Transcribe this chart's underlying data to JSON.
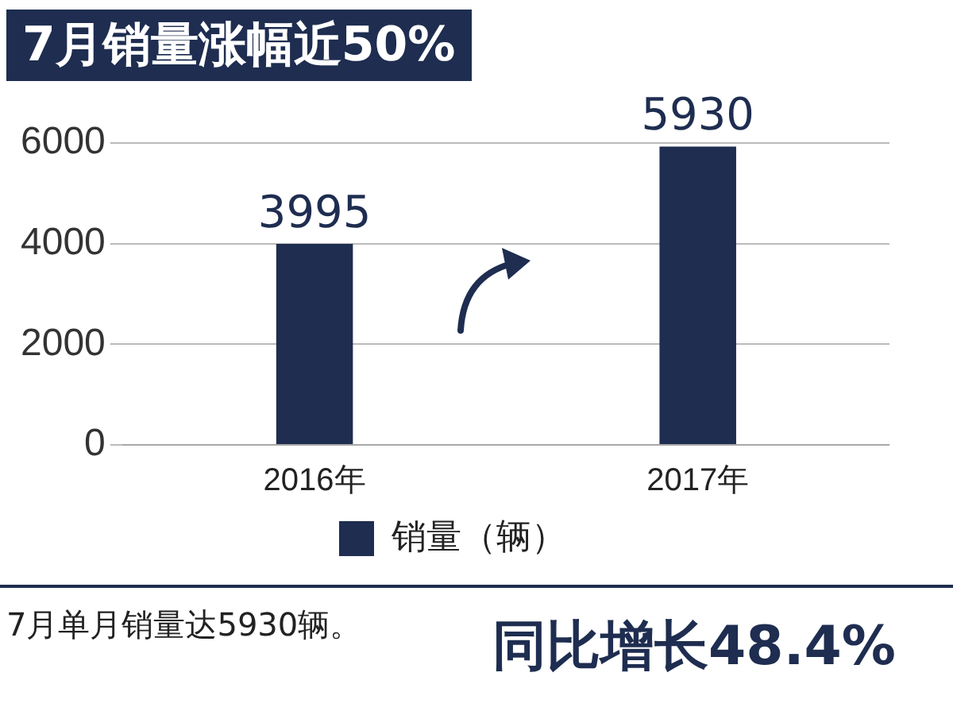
{
  "chart_data": {
    "type": "bar",
    "title": "7月销量涨幅近50%",
    "categories": [
      "2016年",
      "2017年"
    ],
    "series": [
      {
        "name": "销量（辆）",
        "color": "#1e2d50",
        "values": [
          3995,
          5930
        ]
      }
    ],
    "ylim": [
      0,
      6000
    ],
    "yticks": [
      0,
      2000,
      4000,
      6000
    ],
    "grid": "y",
    "legend": "bottom",
    "data_labels": true,
    "annotations": [
      "7月单月销量达5930辆。",
      "同比增长48.4%"
    ]
  }
}
